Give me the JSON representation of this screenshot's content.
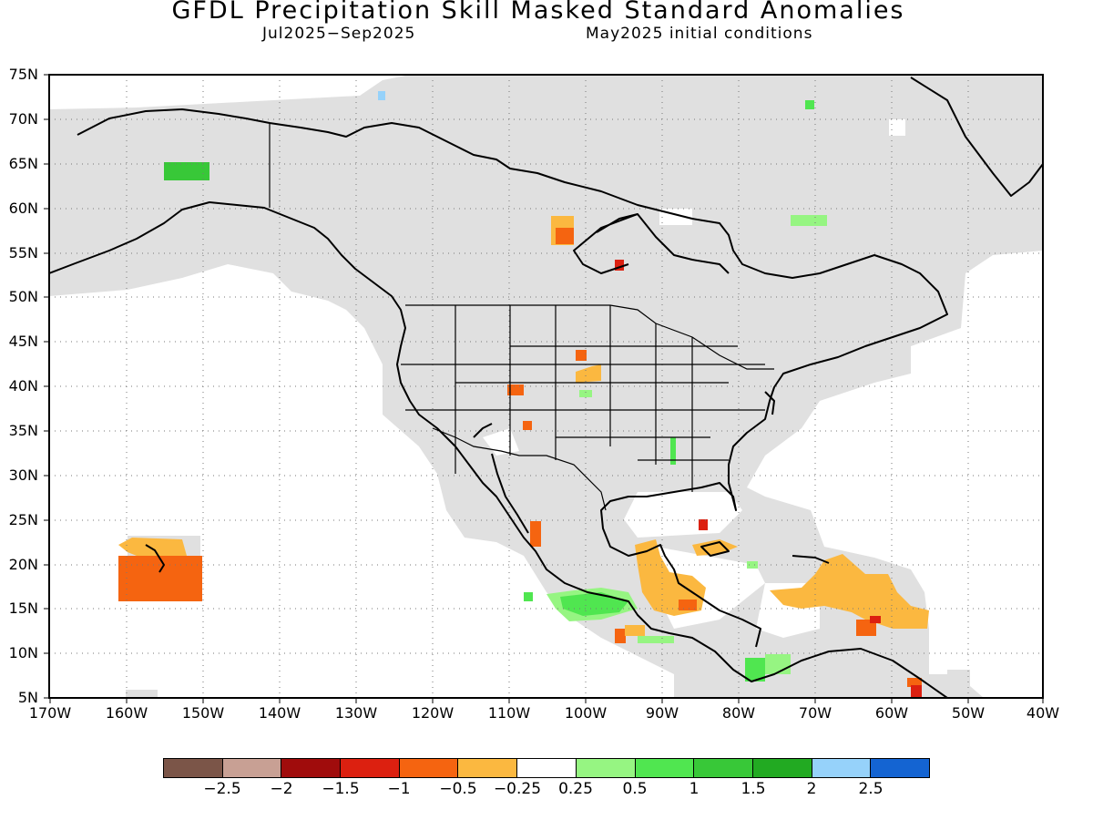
{
  "title": "GFDL Precipitation Skill Masked Standard Anomalies",
  "subtitle_left": "Jul2025−Sep2025",
  "subtitle_right": "May2025 initial conditions",
  "lat_labels": [
    "75N",
    "70N",
    "65N",
    "60N",
    "55N",
    "50N",
    "45N",
    "40N",
    "35N",
    "30N",
    "25N",
    "20N",
    "15N",
    "10N",
    "5N"
  ],
  "lon_labels": [
    "170W",
    "160W",
    "150W",
    "140W",
    "130W",
    "120W",
    "110W",
    "100W",
    "90W",
    "80W",
    "70W",
    "60W",
    "50W",
    "40W"
  ],
  "legend": {
    "colors": [
      "#7b5548",
      "#c8a094",
      "#a00c0c",
      "#dc2010",
      "#f56410",
      "#fbb840",
      "#ffffff",
      "#96f582",
      "#50e650",
      "#38c838",
      "#22aa22",
      "#96d2fa",
      "#1464d2"
    ],
    "tick_labels": [
      "−2.5",
      "−2",
      "−1.5",
      "−1",
      "−0.5",
      "−0.25",
      "0.25",
      "0.5",
      "1",
      "1.5",
      "2",
      "2.5"
    ]
  },
  "colors": {
    "mask_gray": "#e0e0e0",
    "coast": "#000000"
  }
}
